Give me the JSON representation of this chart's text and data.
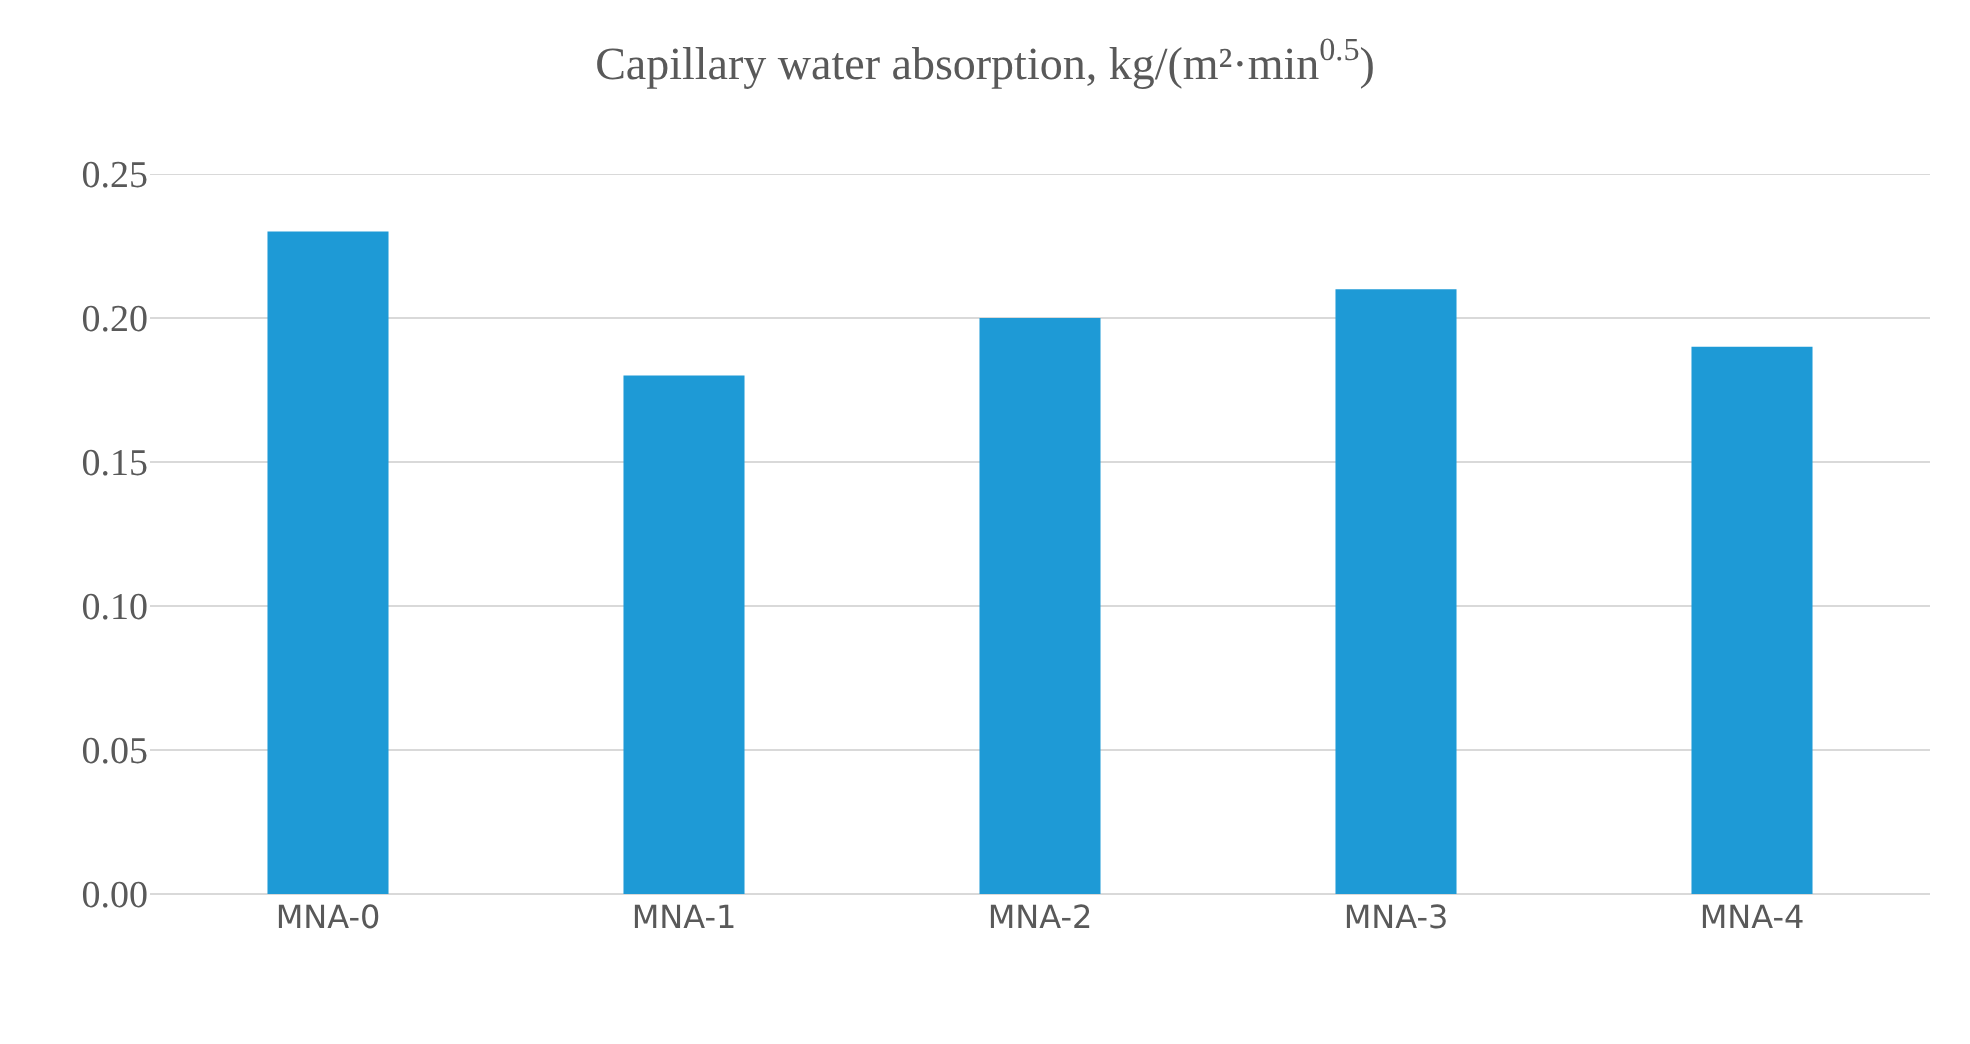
{
  "chart_data": {
    "type": "bar",
    "title": "Capillary water absorption, kg/(m²·min$^{0.5}$)",
    "categories": [
      "MNA-0",
      "MNA-1",
      "MNA-2",
      "MNA-3",
      "MNA-4"
    ],
    "values": [
      0.23,
      0.18,
      0.2,
      0.21,
      0.19
    ],
    "color": "#1e9ad6",
    "ylim": [
      0,
      0.25
    ],
    "yticks": [
      {
        "value": 0,
        "label": "0.00"
      },
      {
        "value": 0.05,
        "label": "0.05"
      },
      {
        "value": 0.1,
        "label": "0.10"
      },
      {
        "value": 0.15,
        "label": "0.15"
      },
      {
        "value": 0.2,
        "label": "0.20"
      },
      {
        "value": 0.25,
        "label": "0.25"
      }
    ],
    "grid": "y"
  }
}
